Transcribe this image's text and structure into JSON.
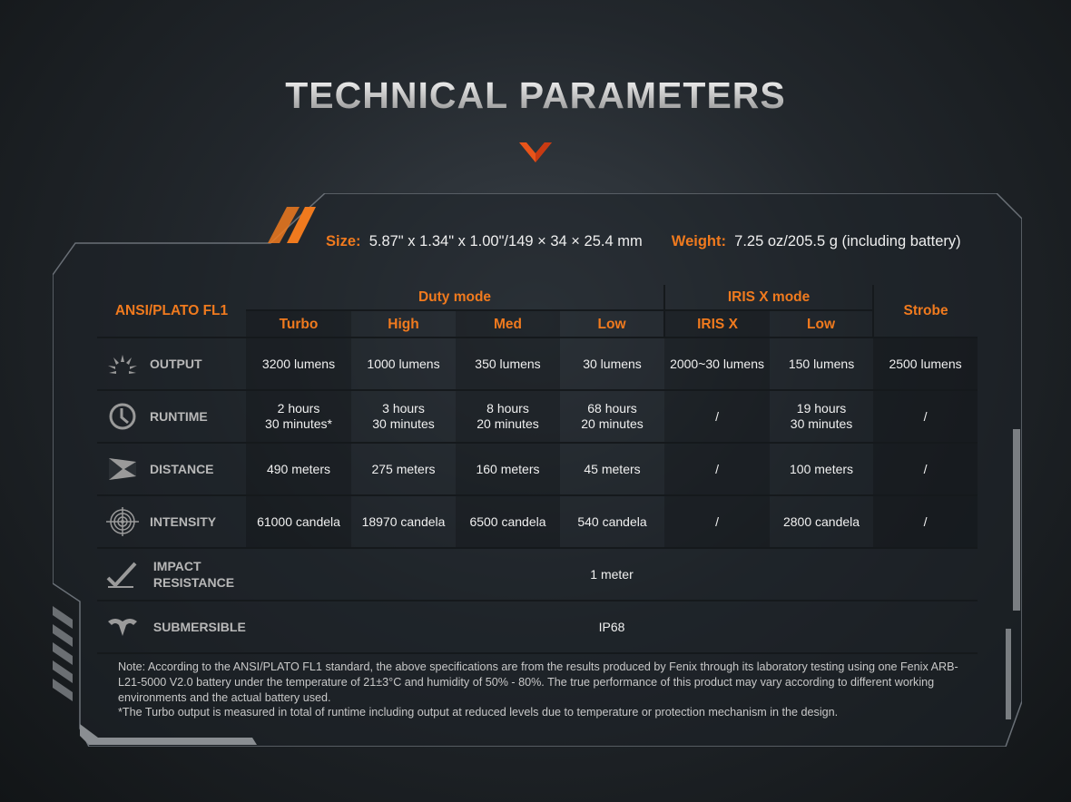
{
  "title": "TECHNICAL PARAMETERS",
  "accent": "#f07a1e",
  "size_label": "Size:",
  "size_value": "5.87\" x 1.34\" x 1.00\"/149 × 34 × 25.4 mm",
  "weight_label": "Weight:",
  "weight_value": "7.25 oz/205.5 g (including battery)",
  "table": {
    "corner": "ANSI/PLATO FL1",
    "groups": [
      "Duty mode",
      "IRIS X mode",
      "Strobe"
    ],
    "modes": [
      "Turbo",
      "High",
      "Med",
      "Low",
      "IRIS X",
      "Low"
    ],
    "rows": [
      {
        "label": "OUTPUT",
        "icon": "sunburst-icon",
        "cells": [
          "3200 lumens",
          "1000 lumens",
          "350 lumens",
          "30 lumens",
          "2000~30 lumens",
          "150 lumens",
          "2500 lumens"
        ]
      },
      {
        "label": "RUNTIME",
        "icon": "clock-icon",
        "cells": [
          [
            "2 hours",
            "30 minutes*"
          ],
          [
            "3 hours",
            "30 minutes"
          ],
          [
            "8 hours",
            "20 minutes"
          ],
          [
            "68 hours",
            "20 minutes"
          ],
          "/",
          [
            "19 hours",
            "30 minutes"
          ],
          "/"
        ]
      },
      {
        "label": "DISTANCE",
        "icon": "distance-icon",
        "cells": [
          "490 meters",
          "275 meters",
          "160 meters",
          "45 meters",
          "/",
          "100 meters",
          "/"
        ]
      },
      {
        "label": "INTENSITY",
        "icon": "target-icon",
        "cells": [
          "61000 candela",
          "18970 candela",
          "6500 candela",
          "540 candela",
          "/",
          "2800 candela",
          "/"
        ]
      }
    ],
    "impact": {
      "label1": "IMPACT",
      "label2": "RESISTANCE",
      "icon": "impact-check-icon",
      "value": "1 meter"
    },
    "submersible": {
      "label": "SUBMERSIBLE",
      "icon": "water-drop-icon",
      "value": "IP68"
    }
  },
  "notes": [
    "Note: According to the ANSI/PLATO FL1 standard, the above specifications are from the results produced by Fenix through its laboratory testing using one Fenix ARB-L21-5000 V2.0 battery under the temperature of 21±3°C and humidity of 50% - 80%. The true performance of this product may vary according to different working environments and the actual battery used.",
    "*The Turbo output is measured in total of runtime including output at reduced levels due to temperature or protection mechanism in the design."
  ]
}
